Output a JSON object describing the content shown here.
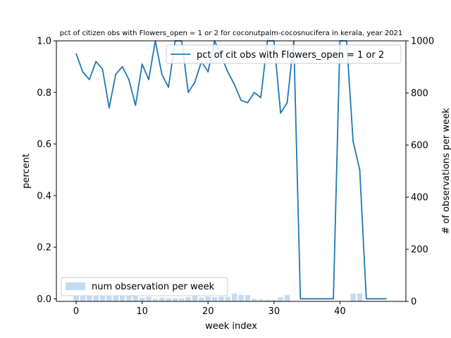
{
  "chart_data": {
    "type": "line",
    "title": "pct of citizen obs with Flowers_open = 1 or 2 for coconutpalm-cocosnucifera in kerala, year 2021",
    "xlabel": "week index",
    "ylabel": "percent",
    "y2label": "# of observations per week",
    "xlim": [
      -3,
      50
    ],
    "ylim": [
      -0.01,
      1.0
    ],
    "y2lim": [
      0,
      1000
    ],
    "xticks": [
      0,
      10,
      20,
      30,
      40
    ],
    "yticks": [
      0.0,
      0.2,
      0.4,
      0.6,
      0.8,
      1.0
    ],
    "y2ticks": [
      0,
      200,
      400,
      600,
      800,
      1000
    ],
    "xtick_labels": [
      "0",
      "10",
      "20",
      "30",
      "40"
    ],
    "ytick_labels": [
      "0.0",
      "0.2",
      "0.4",
      "0.6",
      "0.8",
      "1.0"
    ],
    "y2tick_labels": [
      "0",
      "200",
      "400",
      "600",
      "800",
      "1000"
    ],
    "legend_position": "upper-right",
    "legend_position_bars": "lower-left",
    "colors": {
      "line": "#1f77b4",
      "bars": "#c6dbef"
    },
    "series": [
      {
        "name": "pct of cit obs with Flowers_open = 1 or 2",
        "axis": "left",
        "style": "line",
        "x": [
          0,
          1,
          2,
          3,
          4,
          5,
          6,
          7,
          8,
          9,
          10,
          11,
          12,
          13,
          14,
          15,
          16,
          17,
          18,
          19,
          20,
          21,
          22,
          23,
          24,
          25,
          26,
          27,
          28,
          29,
          30,
          31,
          32,
          33,
          34,
          35,
          36,
          37,
          38,
          39,
          40,
          41,
          42,
          43,
          44,
          45,
          46,
          47
        ],
        "values": [
          0.95,
          0.88,
          0.85,
          0.92,
          0.89,
          0.74,
          0.87,
          0.9,
          0.85,
          0.75,
          0.91,
          0.85,
          1.0,
          0.87,
          0.82,
          1.0,
          1.0,
          0.8,
          0.84,
          0.92,
          0.88,
          1.0,
          0.94,
          0.88,
          0.83,
          0.77,
          0.76,
          0.8,
          0.78,
          1.0,
          1.0,
          0.72,
          0.76,
          1.0,
          0.0,
          0.0,
          0.0,
          0.0,
          0.0,
          0.0,
          1.0,
          1.0,
          0.61,
          0.5,
          0.0,
          0.0,
          0.0,
          0.0
        ]
      },
      {
        "name": "num observation per week",
        "axis": "right",
        "style": "bar",
        "x": [
          0,
          1,
          2,
          3,
          4,
          5,
          6,
          7,
          8,
          9,
          10,
          11,
          12,
          13,
          14,
          15,
          16,
          17,
          18,
          19,
          20,
          21,
          22,
          23,
          24,
          25,
          26,
          27,
          28,
          29,
          30,
          31,
          32,
          33,
          34,
          35,
          36,
          37,
          38,
          39,
          40,
          41,
          42,
          43,
          44,
          45,
          46,
          47
        ],
        "values": [
          22,
          20,
          20,
          20,
          20,
          20,
          20,
          20,
          20,
          20,
          14,
          18,
          10,
          14,
          12,
          12,
          12,
          16,
          20,
          14,
          18,
          16,
          18,
          18,
          30,
          25,
          24,
          10,
          8,
          5,
          6,
          16,
          25,
          0,
          0,
          0,
          0,
          0,
          0,
          0,
          0,
          0,
          30,
          30,
          0,
          0,
          0,
          0
        ]
      }
    ]
  }
}
